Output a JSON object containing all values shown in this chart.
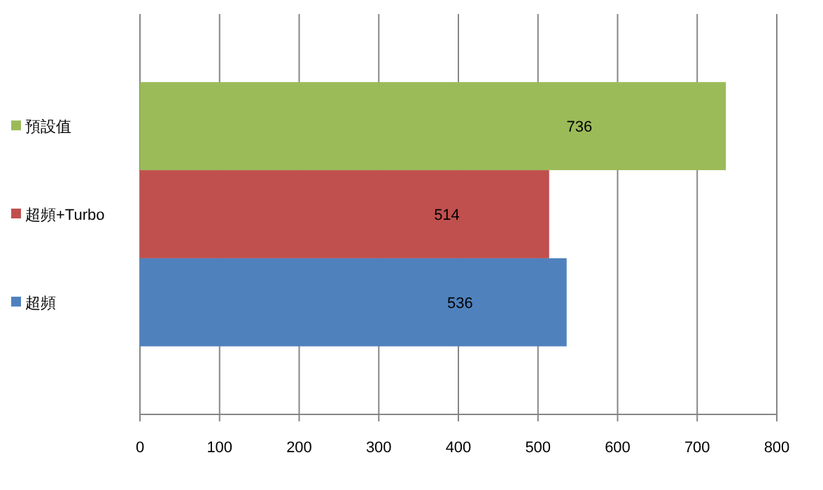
{
  "chart_data": {
    "type": "bar",
    "orientation": "horizontal",
    "categories": [
      null
    ],
    "series": [
      {
        "name": "預設值",
        "color": "#9bbb59",
        "values": [
          736
        ]
      },
      {
        "name": "超頻+Turbo",
        "color": "#c0504d",
        "values": [
          514
        ]
      },
      {
        "name": "超頻",
        "color": "#4f81bd",
        "values": [
          536
        ]
      }
    ],
    "xlim": [
      0,
      800
    ],
    "xticks": [
      0,
      100,
      200,
      300,
      400,
      500,
      600,
      700,
      800
    ],
    "grid": "x",
    "legend": "left",
    "data_labels": true
  }
}
